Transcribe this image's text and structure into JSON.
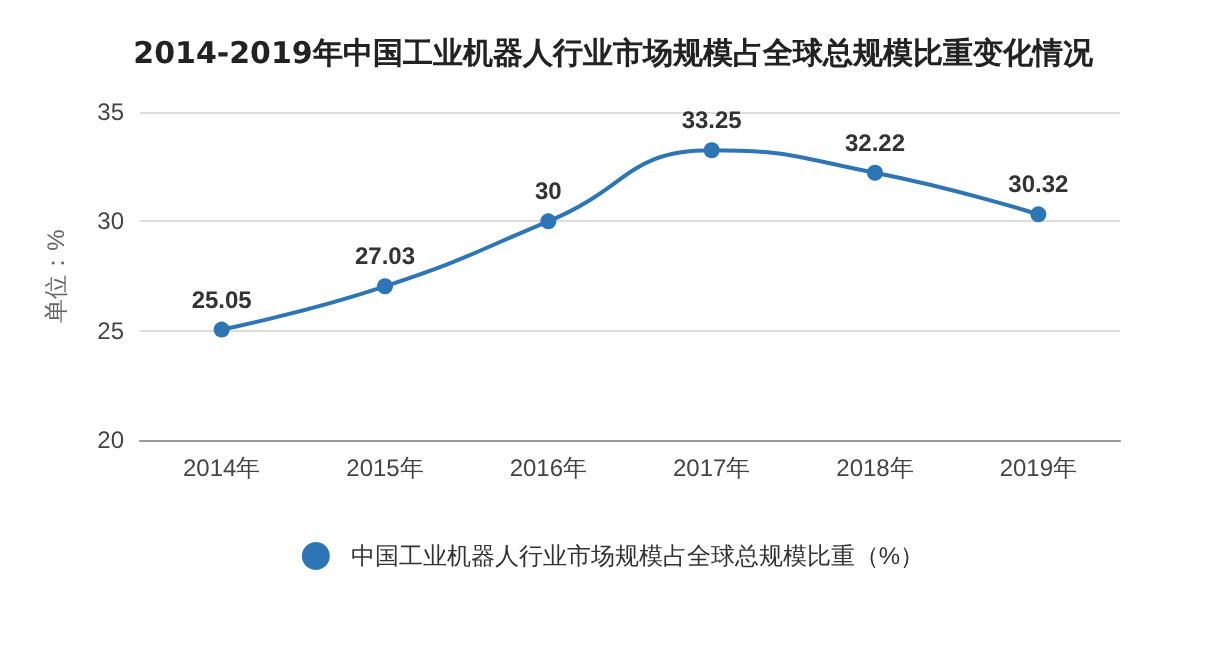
{
  "chart_data": {
    "type": "line",
    "title": "2014-2019年中国工业机器人行业市场规模占全球总规模比重变化情况",
    "ylabel": "单位：%",
    "categories": [
      "2014年",
      "2015年",
      "2016年",
      "2017年",
      "2018年",
      "2019年"
    ],
    "series": [
      {
        "name": "中国工业机器人行业市场规模占全球总规模比重（%）",
        "color": "#2e75b6",
        "values": [
          25.05,
          27.03,
          30,
          33.25,
          32.22,
          30.32
        ]
      }
    ],
    "ylim": [
      20,
      35
    ],
    "yticks": [
      20,
      25,
      30,
      35
    ],
    "grid": "y",
    "legend": "bottom",
    "marker": "circle",
    "line_style": "solid",
    "data_labels": true
  }
}
